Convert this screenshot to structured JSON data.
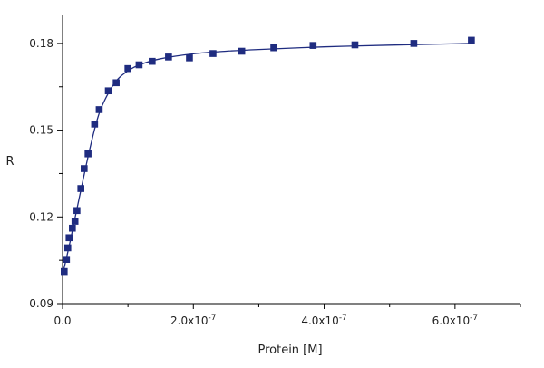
{
  "chart_data": {
    "type": "scatter",
    "title": "",
    "xlabel": "Protein [M]",
    "ylabel": "R",
    "xlim": [
      0,
      7e-07
    ],
    "ylim": [
      0.09,
      0.19
    ],
    "x_ticks": [
      0,
      2e-07,
      4e-07,
      6e-07
    ],
    "x_tick_labels": [
      {
        "base": "0.0",
        "exp": ""
      },
      {
        "base": "2.0x10",
        "exp": "-7"
      },
      {
        "base": "4.0x10",
        "exp": "-7"
      },
      {
        "base": "6.0x10",
        "exp": "-7"
      }
    ],
    "x_minor_ticks": [
      1e-07,
      3e-07,
      5e-07,
      7e-07
    ],
    "y_ticks": [
      0.09,
      0.12,
      0.15,
      0.18
    ],
    "y_tick_labels": [
      "0.09",
      "0.12",
      "0.15",
      "0.18"
    ],
    "y_minor_ticks": [
      0.105,
      0.135,
      0.165
    ],
    "grid": false,
    "series": [
      {
        "kind": "points",
        "marker": "square",
        "color": "#1f2c80",
        "x": [
          2.5e-09,
          6e-09,
          8e-09,
          1e-08,
          1.5e-08,
          1.9e-08,
          2.2e-08,
          2.8e-08,
          3.3e-08,
          3.9e-08,
          4.9e-08,
          5.6e-08,
          7e-08,
          8.2e-08,
          1e-07,
          1.17e-07,
          1.37e-07,
          1.62e-07,
          1.94e-07,
          2.3e-07,
          2.74e-07,
          3.23e-07,
          3.83e-07,
          4.47e-07,
          5.37e-07,
          6.25e-07
        ],
        "y": [
          0.1011,
          0.1053,
          0.1093,
          0.1128,
          0.1161,
          0.1185,
          0.1222,
          0.1298,
          0.1367,
          0.1418,
          0.1521,
          0.1571,
          0.1636,
          0.1664,
          0.1713,
          0.1726,
          0.1738,
          0.1753,
          0.175,
          0.1765,
          0.1773,
          0.1785,
          0.1793,
          0.1795,
          0.18,
          0.1811
        ]
      },
      {
        "kind": "fit-curve",
        "color": "#1f2c80",
        "x": [
          0,
          1e-08,
          2e-08,
          3e-08,
          4e-08,
          5e-08,
          6e-08,
          8e-08,
          1e-07,
          1.2e-07,
          1.5e-07,
          2e-07,
          2.5e-07,
          3e-07,
          4e-07,
          5e-07,
          6.25e-07
        ],
        "y": [
          0.1,
          0.1098,
          0.1206,
          0.1313,
          0.1419,
          0.1512,
          0.1582,
          0.1664,
          0.1705,
          0.1728,
          0.1747,
          0.1764,
          0.1773,
          0.1779,
          0.1788,
          0.1794,
          0.18
        ]
      }
    ]
  }
}
